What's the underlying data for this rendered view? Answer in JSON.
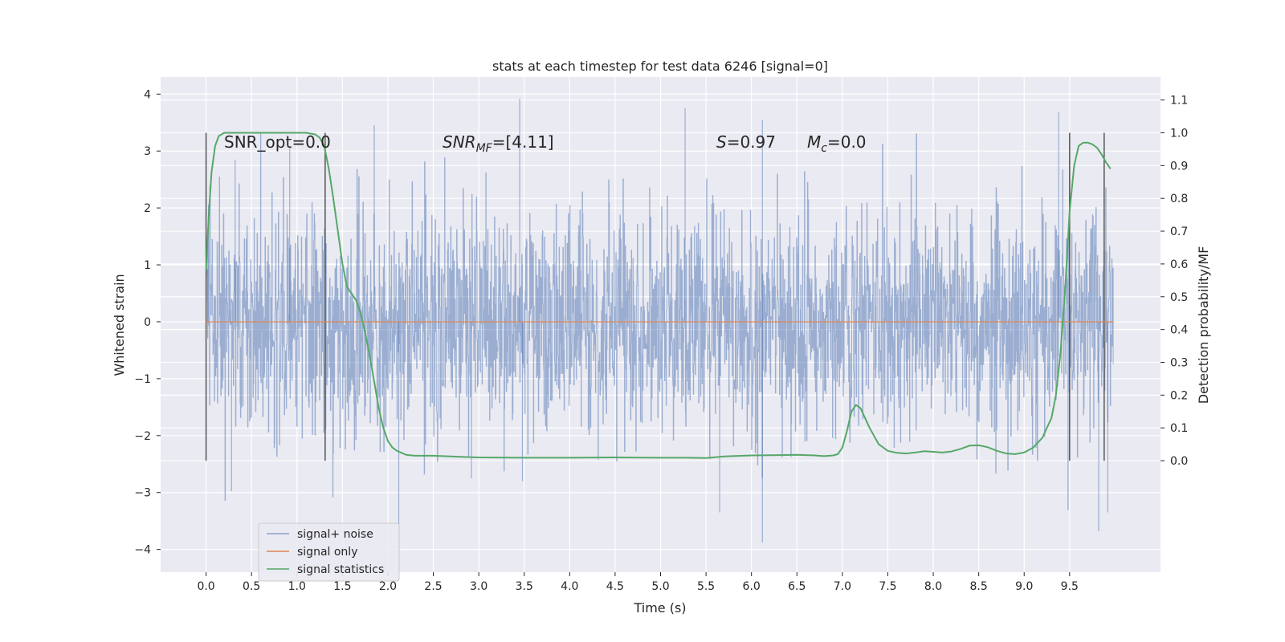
{
  "chart_data": {
    "type": "line",
    "title": "stats at each timestep for test data 6246 [signal=0]",
    "xlabel": "Time (s)",
    "ylabel": "Whitened strain",
    "ylabel_right": "Detection probability/MF",
    "xlim": [
      -0.5,
      10.5
    ],
    "ylim": [
      -4.4,
      4.3
    ],
    "ylim_right": [
      -0.34,
      1.17
    ],
    "xticks": [
      "0.0",
      "0.5",
      "1.0",
      "1.5",
      "2.0",
      "2.5",
      "3.0",
      "3.5",
      "4.0",
      "4.5",
      "5.0",
      "5.5",
      "6.0",
      "6.5",
      "7.0",
      "7.5",
      "8.0",
      "8.5",
      "9.0",
      "9.5"
    ],
    "yticks": [
      "−4",
      "−3",
      "−2",
      "−1",
      "0",
      "1",
      "2",
      "3",
      "4"
    ],
    "yticks_right": [
      "0.0",
      "0.1",
      "0.2",
      "0.3",
      "0.4",
      "0.5",
      "0.6",
      "0.7",
      "0.8",
      "0.9",
      "1.0",
      "1.1"
    ],
    "grid": true,
    "legend_placement": "lower-left",
    "background_color": "#eaeaf2",
    "annotations": {
      "snr_opt": "SNR_opt=0.0",
      "snr_mf_pre": "SNR",
      "snr_mf_sub": "MF",
      "snr_mf_post": "=[4.11]",
      "s_italic": "S",
      "s_value": "=0.97",
      "mc_italic": "M",
      "mc_sub": "c",
      "mc_value": "=0.0"
    },
    "vertical_lines_x": [
      0.0,
      1.31,
      9.5,
      9.88
    ],
    "noise_envelope": {
      "time_range": [
        0.0,
        9.98
      ],
      "typical_abs_amplitude": 1.4,
      "max": 3.92,
      "min": -3.68
    },
    "series": [
      {
        "name": "signal+ noise",
        "color": "#4c72b0",
        "axis": "left",
        "spikes": [
          {
            "x": 0.02,
            "y": 1.65
          },
          {
            "x": 0.28,
            "y": -2.98
          },
          {
            "x": 0.32,
            "y": 2.85
          },
          {
            "x": 0.92,
            "y": 3.07
          },
          {
            "x": 1.85,
            "y": 3.45
          },
          {
            "x": 2.12,
            "y": -4.05
          },
          {
            "x": 2.92,
            "y": -2.75
          },
          {
            "x": 3.45,
            "y": 3.92
          },
          {
            "x": 3.48,
            "y": -2.8
          },
          {
            "x": 5.27,
            "y": 3.75
          },
          {
            "x": 5.65,
            "y": -3.35
          },
          {
            "x": 6.12,
            "y": -3.88
          },
          {
            "x": 6.12,
            "y": 3.55
          },
          {
            "x": 9.38,
            "y": 3.68
          },
          {
            "x": 9.82,
            "y": -3.68
          },
          {
            "x": 9.92,
            "y": -3.35
          }
        ]
      },
      {
        "name": "signal only",
        "color": "#dd8452",
        "axis": "left",
        "x": [
          0.0,
          9.98
        ],
        "y": [
          0.0,
          0.0
        ]
      },
      {
        "name": "signal statistics",
        "color": "#55a868",
        "axis": "right",
        "x": [
          0.0,
          0.03,
          0.06,
          0.1,
          0.14,
          0.2,
          0.3,
          0.5,
          0.8,
          1.0,
          1.1,
          1.2,
          1.25,
          1.3,
          1.35,
          1.4,
          1.45,
          1.5,
          1.55,
          1.6,
          1.65,
          1.7,
          1.75,
          1.8,
          1.85,
          1.9,
          1.95,
          2.0,
          2.05,
          2.1,
          2.2,
          2.3,
          2.5,
          2.8,
          3.0,
          3.5,
          4.0,
          4.5,
          5.0,
          5.3,
          5.5,
          5.7,
          6.0,
          6.3,
          6.5,
          6.7,
          6.8,
          6.9,
          6.95,
          7.0,
          7.05,
          7.1,
          7.15,
          7.2,
          7.3,
          7.4,
          7.5,
          7.6,
          7.7,
          7.8,
          7.9,
          8.0,
          8.1,
          8.2,
          8.3,
          8.4,
          8.5,
          8.6,
          8.7,
          8.8,
          8.9,
          9.0,
          9.1,
          9.2,
          9.25,
          9.3,
          9.35,
          9.4,
          9.45,
          9.5,
          9.55,
          9.6,
          9.65,
          9.7,
          9.75,
          9.8,
          9.85,
          9.9,
          9.95
        ],
        "y": [
          0.58,
          0.75,
          0.88,
          0.96,
          0.99,
          1.0,
          1.0,
          1.0,
          1.0,
          1.0,
          1.0,
          0.995,
          0.985,
          0.96,
          0.89,
          0.8,
          0.7,
          0.6,
          0.53,
          0.51,
          0.49,
          0.45,
          0.39,
          0.32,
          0.24,
          0.16,
          0.1,
          0.06,
          0.04,
          0.03,
          0.018,
          0.015,
          0.015,
          0.012,
          0.01,
          0.009,
          0.009,
          0.01,
          0.009,
          0.009,
          0.008,
          0.013,
          0.016,
          0.017,
          0.018,
          0.016,
          0.014,
          0.016,
          0.02,
          0.04,
          0.09,
          0.15,
          0.17,
          0.16,
          0.1,
          0.05,
          0.03,
          0.024,
          0.022,
          0.025,
          0.029,
          0.027,
          0.025,
          0.028,
          0.036,
          0.046,
          0.047,
          0.041,
          0.03,
          0.022,
          0.02,
          0.025,
          0.04,
          0.07,
          0.1,
          0.13,
          0.2,
          0.33,
          0.52,
          0.76,
          0.9,
          0.96,
          0.97,
          0.97,
          0.965,
          0.955,
          0.935,
          0.91,
          0.89
        ]
      }
    ]
  }
}
